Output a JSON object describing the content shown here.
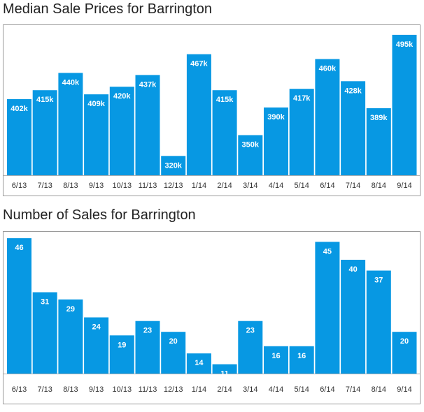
{
  "chart_data": [
    {
      "type": "bar",
      "title": "Median Sale Prices for Barrington",
      "categories": [
        "6/13",
        "7/13",
        "8/13",
        "9/13",
        "10/13",
        "11/13",
        "12/13",
        "1/14",
        "2/14",
        "3/14",
        "4/14",
        "5/14",
        "6/14",
        "7/14",
        "8/14",
        "9/14"
      ],
      "values": [
        402,
        415,
        440,
        409,
        420,
        437,
        320,
        467,
        415,
        350,
        390,
        417,
        460,
        428,
        389,
        495
      ],
      "value_labels": [
        "402k",
        "415k",
        "440k",
        "409k",
        "420k",
        "437k",
        "320k",
        "467k",
        "415k",
        "350k",
        "390k",
        "417k",
        "460k",
        "428k",
        "389k",
        "495k"
      ],
      "ylim": [
        292,
        505
      ],
      "bar_color": "#0798e3",
      "grid": false,
      "legend": "none"
    },
    {
      "type": "bar",
      "title": "Number of Sales for Barrington",
      "categories": [
        "6/13",
        "7/13",
        "8/13",
        "9/13",
        "10/13",
        "11/13",
        "12/13",
        "1/14",
        "2/14",
        "3/14",
        "4/14",
        "5/14",
        "6/14",
        "7/14",
        "8/14",
        "9/14"
      ],
      "values": [
        46,
        31,
        29,
        24,
        19,
        23,
        20,
        14,
        11,
        23,
        16,
        16,
        45,
        40,
        37,
        20
      ],
      "value_labels": [
        "46",
        "31",
        "29",
        "24",
        "19",
        "23",
        "20",
        "14",
        "11",
        "23",
        "16",
        "16",
        "45",
        "40",
        "37",
        "20"
      ],
      "ylim": [
        8.4,
        46.6
      ],
      "bar_color": "#0798e3",
      "grid": false,
      "legend": "none"
    }
  ]
}
